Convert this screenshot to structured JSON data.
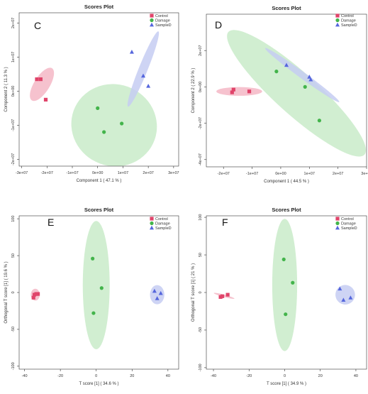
{
  "panel_letters": [
    "C",
    "D",
    "E",
    "F"
  ],
  "legend": [
    {
      "name": "Control",
      "color": "#e0446a",
      "marker": "square"
    },
    {
      "name": "Damage",
      "color": "#43b44b",
      "marker": "circle"
    },
    {
      "name": "SampleD",
      "color": "#5566dd",
      "marker": "triangle"
    }
  ],
  "ellipse_colors": {
    "Control": "#f4b7c6",
    "Damage": "#c9ebc9",
    "SampleD": "#c5cdf2"
  },
  "chart_data": [
    {
      "type": "scatter",
      "panel": "C",
      "title": "Scores Plot",
      "xlabel": "Component 1 ( 47.1 % )",
      "ylabel": "Component 2 ( 11.3 % )",
      "xlim": [
        -31000000.0,
        32000000.0
      ],
      "ylim": [
        -22000000.0,
        23000000.0
      ],
      "xticks": [
        -30000000.0,
        -20000000.0,
        -10000000.0,
        0,
        10000000.0,
        20000000.0,
        30000000.0
      ],
      "xtick_labels": [
        "-3e+07",
        "-2e+07",
        "-1e+07",
        "0e+00",
        "1e+07",
        "2e+07",
        "3e+07"
      ],
      "yticks": [
        -20000000.0,
        -10000000.0,
        0,
        10000000.0,
        20000000.0
      ],
      "ytick_labels": [
        "-2e+07",
        "-1e+07",
        "0e+00",
        "1e+07",
        "2e+07"
      ],
      "grid": false,
      "legend": "top-right",
      "series": [
        {
          "name": "Control",
          "x": [
            -24000000.0,
            -22500000.0,
            -20500000.0
          ],
          "y": [
            3500000.0,
            3500000.0,
            -2500000.0
          ]
        },
        {
          "name": "Damage",
          "x": [
            0.0,
            2500000.0,
            9500000.0
          ],
          "y": [
            -5000000.0,
            -12000000.0,
            -9500000.0
          ]
        },
        {
          "name": "SampleD",
          "x": [
            13500000.0,
            18000000.0,
            20000000.0
          ],
          "y": [
            11500000.0,
            4500000.0,
            1500000.0
          ]
        }
      ],
      "ellipses": [
        {
          "group": "Control",
          "cx": -22000000.0,
          "cy": 2000000.0,
          "rx": 7500000.0,
          "ry": 2300000.0,
          "angle": 58
        },
        {
          "group": "Damage",
          "cx": 6500000.0,
          "cy": -10000000.0,
          "rx": 17000000.0,
          "ry": 12000000.0,
          "angle": -20
        },
        {
          "group": "SampleD",
          "cx": 18000000.0,
          "cy": 6500000.0,
          "rx": 16000000.0,
          "ry": 1300000.0,
          "angle": 68
        }
      ]
    },
    {
      "type": "scatter",
      "panel": "D",
      "title": "Scores Plot",
      "xlabel": "Component 1 ( 44.5 % )",
      "ylabel": "Component 2 ( 22.9 % )",
      "xlim": [
        -26000000.0,
        30000000.0
      ],
      "ylim": [
        -44000000.0,
        40000000.0
      ],
      "xticks": [
        -20000000.0,
        -10000000.0,
        0,
        10000000.0,
        20000000.0,
        30000000.0
      ],
      "xtick_labels": [
        "-2e+07",
        "-1e+07",
        "0e+00",
        "1e+07",
        "2e+07",
        "3e+07"
      ],
      "yticks": [
        -40000000.0,
        -20000000.0,
        0,
        20000000.0
      ],
      "ytick_labels": [
        "-4e+07",
        "-2e+07",
        "0e+00",
        "2e+07"
      ],
      "grid": false,
      "legend": "top-right",
      "series": [
        {
          "name": "Control",
          "x": [
            -17000000.0,
            -16500000.0,
            -11000000.0
          ],
          "y": [
            -3000000.0,
            -1500000.0,
            -2500000.0
          ]
        },
        {
          "name": "Damage",
          "x": [
            -1500000.0,
            8500000.0,
            13500000.0
          ],
          "y": [
            8500000.0,
            0.0,
            -18500000.0
          ]
        },
        {
          "name": "SampleD",
          "x": [
            2000000.0,
            10000000.0,
            10500000.0
          ],
          "y": [
            12000000.0,
            5500000.0,
            4000000.0
          ]
        }
      ],
      "ellipses": [
        {
          "group": "Control",
          "cx": -14500000.0,
          "cy": -2500000.0,
          "rx": 8000000.0,
          "ry": 2400000.0,
          "angle": 0
        },
        {
          "group": "Damage",
          "cx": 5500000.0,
          "cy": -3500000.0,
          "rx": 32000000.0,
          "ry": 11500000.0,
          "angle": -42
        },
        {
          "group": "SampleD",
          "cx": 7500000.0,
          "cy": 6500000.0,
          "rx": 16000000.0,
          "ry": 1800000.0,
          "angle": -36
        }
      ]
    },
    {
      "type": "scatter",
      "panel": "E",
      "title": "Scores Plot",
      "xlabel": "T score [1] ( 34.6 % )",
      "ylabel": "Orthogonal T score [1] ( 19.6 % )",
      "xlim": [
        -43,
        46
      ],
      "ylim": [
        -104,
        104
      ],
      "xticks": [
        -40,
        -20,
        0,
        20,
        40
      ],
      "xtick_labels": [
        "-40",
        "-20",
        "0",
        "20",
        "40"
      ],
      "yticks": [
        -100,
        -50,
        0,
        50,
        100
      ],
      "ytick_labels": [
        "-100",
        "-50",
        "0",
        "50",
        "100"
      ],
      "grid": false,
      "legend": "top-right",
      "series": [
        {
          "name": "Control",
          "x": [
            -35,
            -33.5,
            -34.5,
            -32.5
          ],
          "y": [
            -7,
            -2,
            -3,
            -2
          ]
        },
        {
          "name": "Damage",
          "x": [
            -2,
            3,
            -1.5
          ],
          "y": [
            46,
            6,
            -28
          ]
        },
        {
          "name": "SampleD",
          "x": [
            32.5,
            36,
            34
          ],
          "y": [
            2,
            -1,
            -8
          ]
        }
      ],
      "ellipses": [
        {
          "group": "Control",
          "cx": -34,
          "cy": -3,
          "rx": 2.5,
          "ry": 8,
          "angle": 0
        },
        {
          "group": "Damage",
          "cx": 0,
          "cy": 10,
          "rx": 7.5,
          "ry": 87,
          "angle": 0
        },
        {
          "group": "SampleD",
          "cx": 34,
          "cy": -3,
          "rx": 4,
          "ry": 13,
          "angle": 0
        }
      ]
    },
    {
      "type": "scatter",
      "panel": "F",
      "title": "Scores Plot",
      "xlabel": "T score [1] ( 34.9 % )",
      "ylabel": "Orthogonal T score [1] ( 21 % )",
      "xlim": [
        -44,
        46
      ],
      "ylim": [
        -102,
        102
      ],
      "xticks": [
        -40,
        -20,
        0,
        20,
        40
      ],
      "xtick_labels": [
        "-40",
        "-20",
        "0",
        "20",
        "40"
      ],
      "yticks": [
        -100,
        -50,
        0,
        50,
        100
      ],
      "ytick_labels": [
        "-100",
        "-50",
        "0",
        "50",
        "100"
      ],
      "grid": false,
      "legend": "top-right",
      "series": [
        {
          "name": "Control",
          "x": [
            -36,
            -35,
            -32
          ],
          "y": [
            -6,
            -5,
            -3
          ]
        },
        {
          "name": "Damage",
          "x": [
            -0.5,
            4.5,
            0.5
          ],
          "y": [
            44,
            13,
            -29
          ]
        },
        {
          "name": "SampleD",
          "x": [
            31,
            33,
            37
          ],
          "y": [
            5,
            -10,
            -7
          ]
        }
      ],
      "ellipses": [
        {
          "group": "Control",
          "cx": -34,
          "cy": -4.5,
          "rx": 6,
          "ry": 1.6,
          "angle": -15
        },
        {
          "group": "Damage",
          "cx": 0,
          "cy": 10,
          "rx": 7,
          "ry": 88,
          "angle": 0
        },
        {
          "group": "SampleD",
          "cx": 34,
          "cy": -3,
          "rx": 5.5,
          "ry": 13,
          "angle": -30
        }
      ]
    }
  ]
}
